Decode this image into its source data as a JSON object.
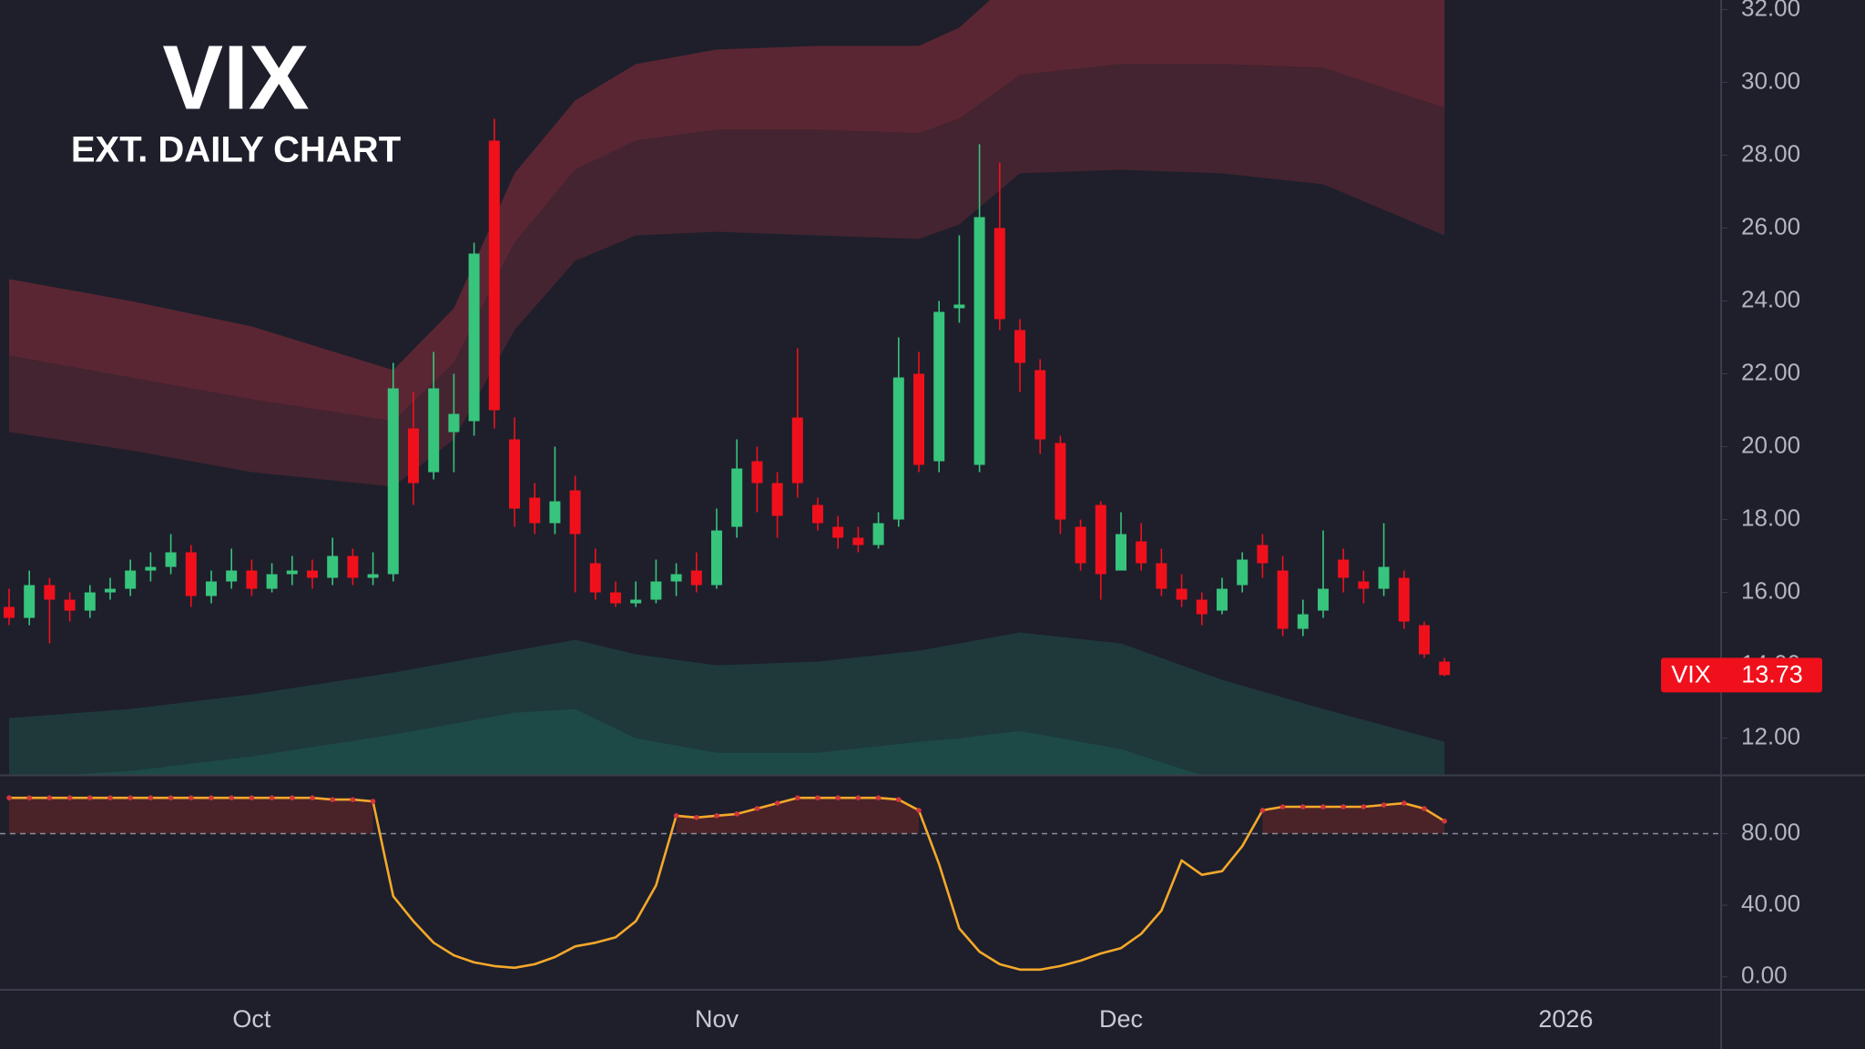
{
  "chart_data": [
    {
      "type": "candlestick",
      "title": "VIX",
      "subtitle": "EXT. DAILY CHART",
      "categories": [
        null,
        null,
        null,
        null,
        null,
        null,
        null,
        null,
        null,
        null,
        null,
        null,
        "Oct",
        null,
        null,
        null,
        null,
        null,
        null,
        null,
        null,
        null,
        null,
        null,
        null,
        null,
        null,
        null,
        null,
        null,
        null,
        null,
        null,
        null,
        null,
        "Nov",
        null,
        null,
        null,
        null,
        null,
        null,
        null,
        null,
        null,
        null,
        null,
        null,
        null,
        null,
        null,
        null,
        null,
        null,
        null,
        "Dec",
        null,
        null,
        null,
        null,
        null,
        null,
        null,
        null,
        null,
        null,
        null,
        null,
        null,
        null,
        null,
        null,
        null,
        null,
        null,
        null,
        null,
        "2026",
        null,
        null,
        null,
        null,
        null,
        null,
        null
      ],
      "open": [
        15.6,
        15.3,
        16.2,
        15.8,
        15.5,
        16.0,
        16.1,
        16.6,
        16.7,
        17.1,
        15.9,
        16.3,
        16.6,
        16.1,
        16.5,
        16.6,
        16.4,
        17.0,
        16.4,
        16.5,
        20.5,
        19.3,
        20.4,
        20.7,
        28.4,
        20.2,
        18.6,
        17.9,
        18.8,
        16.8,
        16.0,
        15.7,
        15.8,
        16.3,
        16.6,
        16.2,
        17.8,
        19.6,
        19.0,
        20.8,
        18.4,
        17.8,
        17.5,
        17.3,
        18.0,
        22.0,
        19.6,
        23.8,
        19.5,
        26.0,
        23.2,
        22.1,
        20.1,
        17.8,
        18.4,
        16.6,
        17.4,
        16.8,
        16.1,
        15.8,
        15.5,
        16.2,
        17.3,
        16.6,
        15.0,
        15.5,
        16.9,
        16.3,
        16.1,
        16.4,
        15.1,
        14.1,
        null,
        null,
        null,
        null,
        null,
        null,
        null,
        null,
        null,
        null,
        null,
        null,
        null
      ],
      "high": [
        16.1,
        16.6,
        16.4,
        16.0,
        16.2,
        16.4,
        16.9,
        17.1,
        17.6,
        17.3,
        16.6,
        17.2,
        16.9,
        16.8,
        17.0,
        16.9,
        17.5,
        17.2,
        17.1,
        22.3,
        21.5,
        22.6,
        22.0,
        25.6,
        29.0,
        20.8,
        19.0,
        20.0,
        19.2,
        17.2,
        16.3,
        16.3,
        16.9,
        16.8,
        17.1,
        18.3,
        20.2,
        20.0,
        19.3,
        22.7,
        18.6,
        18.1,
        17.8,
        18.2,
        23.0,
        22.6,
        24.0,
        25.8,
        28.3,
        27.8,
        23.5,
        22.4,
        20.3,
        18.0,
        18.5,
        18.2,
        17.9,
        17.2,
        16.5,
        16.0,
        16.4,
        17.1,
        17.6,
        17.0,
        15.8,
        17.7,
        17.2,
        16.6,
        17.9,
        16.6,
        15.2,
        14.2,
        null,
        null,
        null,
        null,
        null,
        null,
        null,
        null,
        null,
        null,
        null,
        null,
        null
      ],
      "low": [
        15.1,
        15.1,
        14.6,
        15.2,
        15.3,
        15.8,
        15.9,
        16.3,
        16.5,
        15.6,
        15.7,
        16.1,
        15.9,
        16.0,
        16.2,
        16.1,
        16.2,
        16.2,
        16.2,
        16.3,
        18.4,
        19.1,
        19.3,
        20.3,
        20.5,
        17.8,
        17.6,
        17.6,
        16.0,
        15.8,
        15.6,
        15.6,
        15.7,
        15.9,
        16.0,
        16.1,
        17.5,
        18.2,
        17.5,
        18.6,
        17.7,
        17.2,
        17.1,
        17.2,
        17.8,
        19.3,
        19.3,
        23.4,
        19.3,
        23.2,
        21.5,
        19.8,
        17.6,
        16.6,
        15.8,
        16.8,
        16.6,
        15.9,
        15.6,
        15.1,
        15.4,
        16.0,
        16.4,
        14.8,
        14.8,
        15.3,
        16.0,
        15.7,
        15.9,
        15.0,
        14.2,
        13.7,
        null,
        null,
        null,
        null,
        null,
        null,
        null,
        null,
        null,
        null,
        null,
        null,
        null
      ],
      "close": [
        15.3,
        16.2,
        15.8,
        15.5,
        16.0,
        16.1,
        16.6,
        16.7,
        17.1,
        15.9,
        16.3,
        16.6,
        16.1,
        16.5,
        16.6,
        16.4,
        17.0,
        16.4,
        16.5,
        21.6,
        19.0,
        21.6,
        20.9,
        25.3,
        21.0,
        18.3,
        17.9,
        18.5,
        17.6,
        16.0,
        15.7,
        15.8,
        16.3,
        16.5,
        16.2,
        17.7,
        19.4,
        19.0,
        18.1,
        19.0,
        17.9,
        17.5,
        17.3,
        17.9,
        21.9,
        19.5,
        23.7,
        23.9,
        26.3,
        23.5,
        22.3,
        20.2,
        18.0,
        16.8,
        16.5,
        17.6,
        16.8,
        16.1,
        15.8,
        15.4,
        16.1,
        16.9,
        16.8,
        15.0,
        15.4,
        16.1,
        16.4,
        16.1,
        16.7,
        15.2,
        14.3,
        13.73,
        null,
        null,
        null,
        null,
        null,
        null,
        null,
        null,
        null,
        null,
        null,
        null,
        null
      ],
      "up_color": "#37c47c",
      "down_color": "#f0101c",
      "bands": [
        {
          "color": "#5b2633",
          "x": [
            0,
            6,
            12,
            19,
            22,
            25,
            28,
            31,
            35,
            40,
            45,
            47,
            50,
            55,
            60,
            65,
            71
          ],
          "upper": [
            24.6,
            24.0,
            23.3,
            22.1,
            23.8,
            27.5,
            29.5,
            30.5,
            30.9,
            31.0,
            31.0,
            31.5,
            33.0,
            33.0,
            33.0,
            33.0,
            33.0
          ],
          "lower": [
            22.5,
            21.9,
            21.3,
            20.7,
            22.3,
            25.6,
            27.6,
            28.4,
            28.7,
            28.7,
            28.6,
            29.0,
            30.2,
            30.5,
            30.5,
            30.4,
            29.3
          ]
        },
        {
          "color": "#442430",
          "x": [
            0,
            6,
            12,
            19,
            22,
            25,
            28,
            31,
            35,
            40,
            45,
            47,
            50,
            55,
            60,
            65,
            71
          ],
          "upper": [
            22.5,
            21.9,
            21.3,
            20.7,
            22.3,
            25.6,
            27.6,
            28.4,
            28.7,
            28.7,
            28.6,
            29.0,
            30.2,
            30.5,
            30.5,
            30.4,
            29.3
          ],
          "lower": [
            20.4,
            19.9,
            19.3,
            18.9,
            20.2,
            23.2,
            25.1,
            25.8,
            25.9,
            25.8,
            25.7,
            26.1,
            27.5,
            27.6,
            27.5,
            27.2,
            25.8
          ]
        },
        {
          "color": "#1f393b",
          "x": [
            0,
            6,
            12,
            19,
            22,
            25,
            28,
            31,
            35,
            40,
            45,
            47,
            50,
            55,
            60,
            65,
            71
          ],
          "upper": [
            12.55,
            12.8,
            13.2,
            13.8,
            14.1,
            14.4,
            14.7,
            14.3,
            14.0,
            14.1,
            14.4,
            14.6,
            14.9,
            14.6,
            13.6,
            12.8,
            11.9
          ],
          "lower": [
            10.9,
            11.1,
            11.5,
            12.1,
            12.4,
            12.7,
            12.8,
            12.0,
            11.6,
            11.6,
            11.9,
            12.0,
            12.2,
            11.7,
            10.8,
            10.2,
            9.8
          ]
        },
        {
          "color": "#1d4a46",
          "x": [
            0,
            6,
            12,
            19,
            22,
            25,
            28,
            31,
            35,
            40,
            45,
            47,
            50,
            55,
            60,
            65,
            71
          ],
          "upper": [
            10.9,
            11.1,
            11.5,
            12.1,
            12.4,
            12.7,
            12.8,
            12.0,
            11.6,
            11.6,
            11.9,
            12.0,
            12.2,
            11.7,
            10.8,
            10.2,
            9.8
          ],
          "lower": [
            9.5,
            9.5,
            9.5,
            9.5,
            9.5,
            9.5,
            9.5,
            9.5,
            9.5,
            9.5,
            9.5,
            9.5,
            9.5,
            9.5,
            9.5,
            9.5,
            9.5
          ]
        }
      ],
      "ylim": [
        10.99,
        32.26
      ],
      "yticks": [
        {
          "value": 12,
          "label": "12.00"
        },
        {
          "value": 14,
          "label": "14.00"
        },
        {
          "value": 16,
          "label": "16.00"
        },
        {
          "value": 18,
          "label": "18.00"
        },
        {
          "value": 20,
          "label": "20.00"
        },
        {
          "value": 22,
          "label": "22.00"
        },
        {
          "value": 24,
          "label": "24.00"
        },
        {
          "value": 26,
          "label": "26.00"
        },
        {
          "value": 28,
          "label": "28.00"
        },
        {
          "value": 30,
          "label": "30.00"
        },
        {
          "value": 32,
          "label": "32.00"
        }
      ],
      "grid": false,
      "last_label": {
        "name": "VIX",
        "value": 13.73,
        "color": "#f0101c"
      }
    },
    {
      "type": "line",
      "values": [
        100,
        100,
        100,
        100,
        100,
        100,
        100,
        100,
        100,
        100,
        100,
        100,
        100,
        100,
        100,
        100,
        99,
        99,
        98,
        45,
        31,
        19,
        12,
        8,
        6,
        5,
        7,
        11,
        17,
        19,
        22,
        31,
        51,
        90,
        89,
        90,
        91,
        94,
        97,
        100,
        100,
        100,
        100,
        100,
        99,
        93,
        63,
        27,
        14,
        7,
        4,
        4,
        6,
        9,
        13,
        16,
        24,
        37,
        65,
        57,
        59,
        73,
        93,
        95,
        95,
        95,
        95,
        95,
        96,
        97,
        94,
        87,
        null,
        null,
        null,
        null,
        null,
        null,
        null,
        null,
        null,
        null,
        null,
        null,
        null
      ],
      "color": "#f5a82a",
      "above_color": "#d2353c",
      "above_fill": "#4a2329",
      "reference_line": 80,
      "ylim": [
        -7.3,
        112.3
      ],
      "yticks": [
        {
          "value": 0,
          "label": "0.00"
        },
        {
          "value": 40,
          "label": "40.00"
        },
        {
          "value": 80,
          "label": "80.00"
        }
      ],
      "grid": false
    }
  ]
}
